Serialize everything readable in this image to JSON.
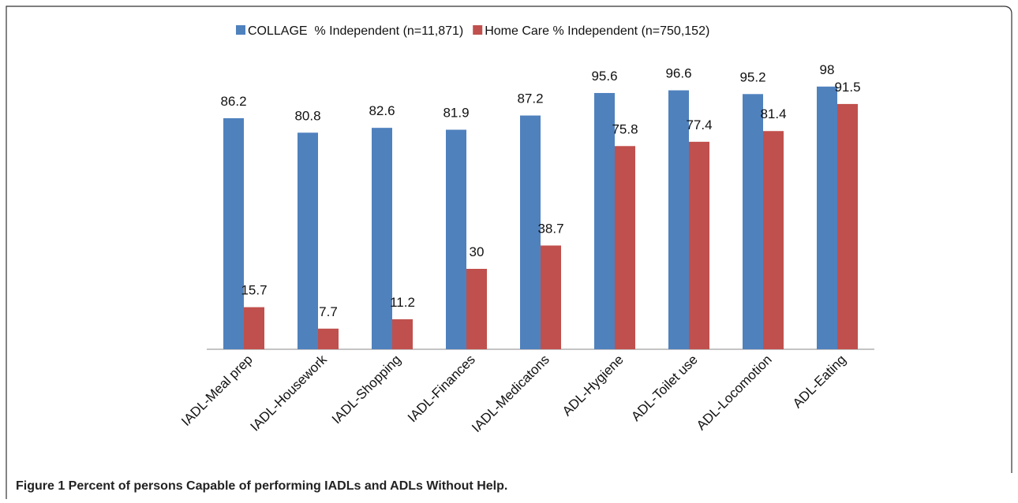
{
  "chart_data": {
    "type": "bar",
    "categories": [
      "IADL-Meal prep",
      "IADL-Housework",
      "IADL-Shopping",
      "IADL-Finances",
      "IADL-Medicatons",
      "ADL-Hygiene",
      "ADL-Toilet use",
      "ADL-Locomotion",
      "ADL-Eating"
    ],
    "series": [
      {
        "name": "COLLAGE  % Independent (n=11,871)",
        "color": "#4f81bd",
        "values": [
          86.2,
          80.8,
          82.6,
          81.9,
          87.2,
          95.6,
          96.6,
          95.2,
          98
        ]
      },
      {
        "name": "Home Care % Independent (n=750,152)",
        "color": "#c0504d",
        "values": [
          15.7,
          7.7,
          11.2,
          30,
          38.7,
          75.8,
          77.4,
          81.4,
          91.5
        ]
      }
    ],
    "ylim": [
      0,
      100
    ],
    "legend": "top"
  },
  "caption": "Figure 1 Percent of persons Capable of performing IADLs and ADLs Without Help."
}
